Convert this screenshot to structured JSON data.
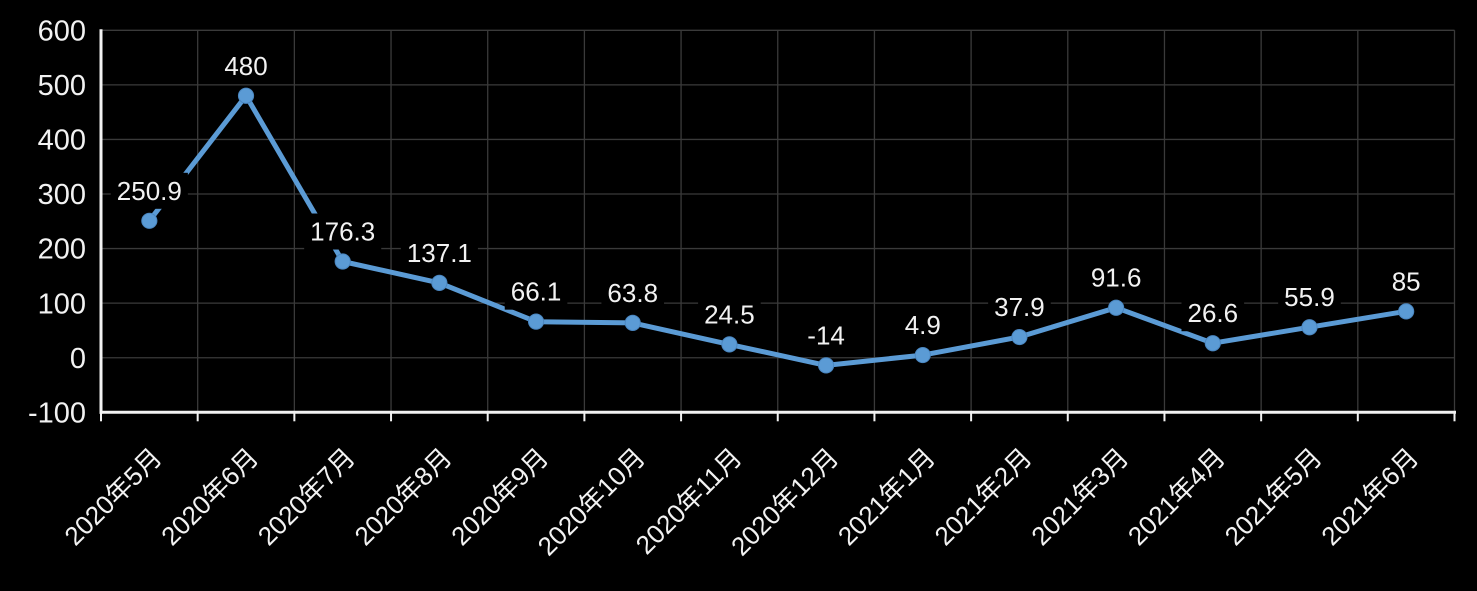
{
  "chart_data": {
    "type": "line",
    "title": "",
    "xlabel": "",
    "ylabel": "",
    "categories": [
      "2020年5月",
      "2020年6月",
      "2020年7月",
      "2020年8月",
      "2020年9月",
      "2020年10月",
      "2020年11月",
      "2020年12月",
      "2021年1月",
      "2021年2月",
      "2021年3月",
      "2021年4月",
      "2021年5月",
      "2021年6月"
    ],
    "series": [
      {
        "name": "",
        "values": [
          250.9,
          480,
          176.3,
          137.1,
          66.1,
          63.8,
          24.5,
          -14,
          4.9,
          37.9,
          91.6,
          26.6,
          55.9,
          85
        ],
        "point_labels": [
          "250.9",
          "480",
          "176.3",
          "137.1",
          "66.1",
          "63.8",
          "24.5",
          "-14",
          "4.9",
          "37.9",
          "91.6",
          "26.6",
          "55.9",
          "85"
        ]
      }
    ],
    "ylim": [
      -100,
      600
    ],
    "ytick_interval": 100,
    "ytick_labels": [
      "600",
      "500",
      "400",
      "300",
      "200",
      "100",
      "0",
      "-100"
    ],
    "grid": true,
    "legend": false,
    "marker_shape": "circle",
    "x_label_rotation_deg": -45,
    "colors": {
      "background": "#000000",
      "line": "#5B9BD5",
      "marker": "#5B9BD5",
      "marker_edge": "#4a86c0",
      "gridline": "#3a3a3a",
      "axis_line": "#f2f2f2",
      "tick_text": "#f2f2f2",
      "data_label_text": "#f2f2f2",
      "data_label_bg": "#000000"
    }
  }
}
